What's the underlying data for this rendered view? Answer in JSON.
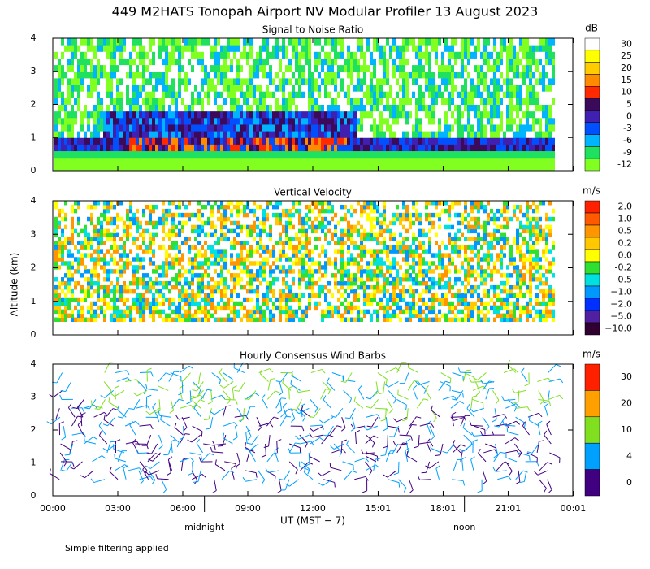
{
  "title": "449 M2HATS Tonopah Airport NV Modular Profiler 13 August 2023",
  "ylabel": "Altitude (km)",
  "xlabel": "UT  (MST − 7)",
  "xlim": [
    0,
    24
  ],
  "xticks": [
    {
      "value": 0,
      "label": "00:00"
    },
    {
      "value": 3,
      "label": "03:00"
    },
    {
      "value": 6,
      "label": "06:00"
    },
    {
      "value": 9,
      "label": "09:00"
    },
    {
      "value": 12,
      "label": "12:00"
    },
    {
      "value": 15.017,
      "label": "15:01"
    },
    {
      "value": 18.017,
      "label": "18:01"
    },
    {
      "value": 21.017,
      "label": "21:01"
    },
    {
      "value": 24.017,
      "label": "00:01"
    }
  ],
  "annotations": [
    {
      "text": "midnight",
      "x": 7
    },
    {
      "text": "noon",
      "x": 19
    }
  ],
  "footnote": "Simple filtering applied",
  "chart_data": [
    {
      "type": "snr",
      "title": "Signal to Noise Ratio",
      "ylim": [
        0,
        4
      ],
      "yticks": [
        0,
        1,
        2,
        3,
        4
      ],
      "colorbar": {
        "unit": "dB",
        "levels": [
          30,
          25,
          20,
          15,
          10,
          5,
          0,
          -3,
          -6,
          -9,
          -12
        ],
        "colors": [
          "#ffffff",
          "#ffff00",
          "#ffcc00",
          "#ff8c00",
          "#ff2a00",
          "#3c0a5a",
          "#4020b0",
          "#0050ff",
          "#00b4ff",
          "#20e060",
          "#80ff20"
        ]
      }
    },
    {
      "type": "velocity",
      "title": "Vertical Velocity",
      "ylim": [
        0,
        4
      ],
      "yticks": [
        0,
        1,
        2,
        3,
        4
      ],
      "colorbar": {
        "unit": "m/s",
        "levels": [
          {
            "value": 2,
            "label": "2.0"
          },
          {
            "value": 1,
            "label": "1.0"
          },
          0.5,
          0.2,
          {
            "value": 0,
            "label": "0.0"
          },
          -0.2,
          -0.5,
          {
            "value": -1,
            "label": "−1.0"
          },
          {
            "value": -2,
            "label": "−2.0"
          },
          {
            "value": -5,
            "label": "−5.0"
          },
          {
            "value": -10,
            "label": "−10.0"
          }
        ],
        "colors": [
          "#ff2000",
          "#ff5a00",
          "#ff9600",
          "#ffc800",
          "#ffff00",
          "#30e030",
          "#00e0e0",
          "#0098ff",
          "#0030ff",
          "#5020a0",
          "#300030"
        ]
      }
    },
    {
      "type": "barbs",
      "title": "Hourly Consensus Wind Barbs",
      "ylim": [
        0,
        4
      ],
      "yticks": [
        0,
        1,
        2,
        3,
        4
      ],
      "colorbar": {
        "unit": "m/s",
        "levels": [
          30,
          20,
          10,
          4,
          0
        ],
        "colors": [
          "#ff2000",
          "#ffa000",
          "#80e020",
          "#00a0ff",
          "#400080"
        ]
      }
    }
  ]
}
